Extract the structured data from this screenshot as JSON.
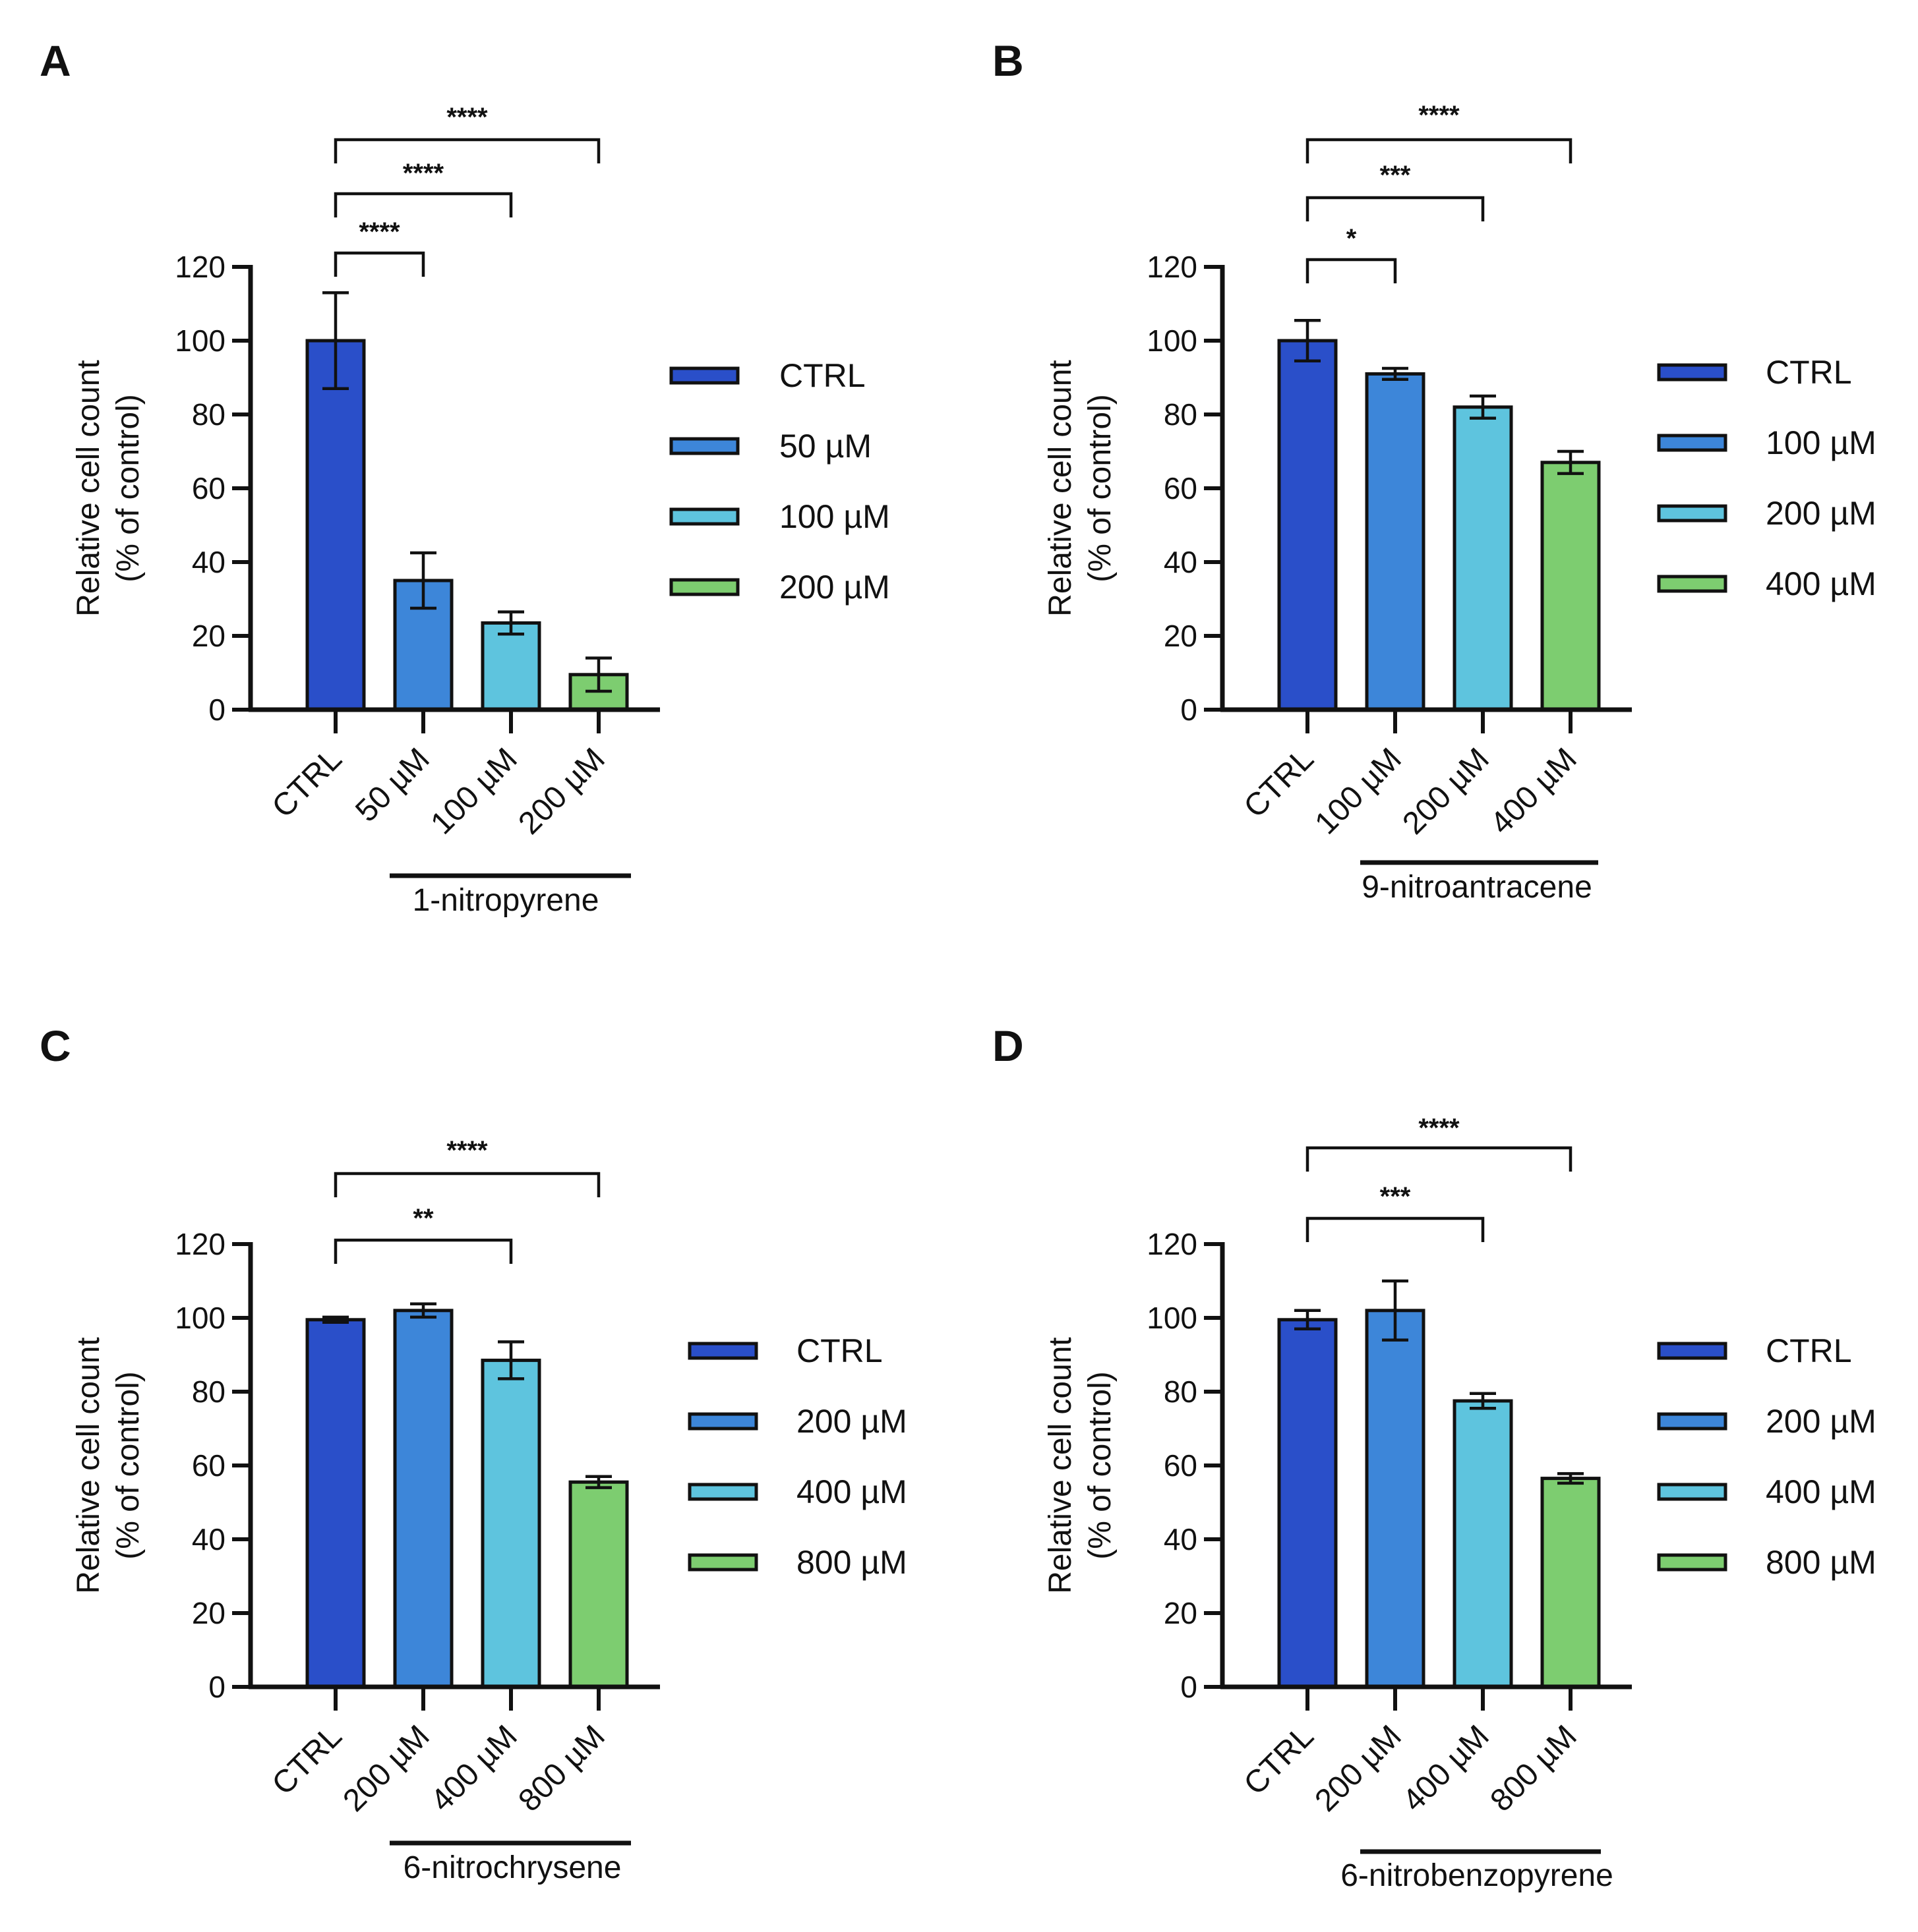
{
  "colors": {
    "ctrl": "#2a4fc9",
    "dose1": "#3d86d9",
    "dose2": "#5ec4de",
    "dose3": "#7dcd70",
    "axis": "#111111",
    "background": "#ffffff"
  },
  "chart_data": [
    {
      "panel_label": "A",
      "type": "bar",
      "categories": [
        "CTRL",
        "50 µM",
        "100 µM",
        "200 µM"
      ],
      "values": [
        100,
        35,
        23.5,
        9.5
      ],
      "error": [
        13,
        7.5,
        3,
        4.5
      ],
      "group_label": "1-nitropyrene",
      "legend": [
        "CTRL",
        "50 µM",
        "100 µM",
        "200 µM"
      ],
      "ylabel_line1": "Relative cell count",
      "ylabel_line2": "(% of control)",
      "ylim": [
        0,
        120
      ],
      "yticks": [
        0,
        20,
        40,
        60,
        80,
        100,
        120
      ],
      "brackets": [
        {
          "from": 0,
          "to": 1,
          "label": "****"
        },
        {
          "from": 0,
          "to": 2,
          "label": "****"
        },
        {
          "from": 0,
          "to": 3,
          "label": "****"
        }
      ]
    },
    {
      "panel_label": "B",
      "type": "bar",
      "categories": [
        "CTRL",
        "100 µM",
        "200 µM",
        "400 µM"
      ],
      "values": [
        100,
        91,
        82,
        67
      ],
      "error": [
        5.5,
        1.5,
        3,
        3
      ],
      "group_label": "9-nitroantracene",
      "legend": [
        "CTRL",
        "100 µM",
        "200 µM",
        "400 µM"
      ],
      "ylabel_line1": "Relative cell count",
      "ylabel_line2": "(% of control)",
      "ylim": [
        0,
        120
      ],
      "yticks": [
        0,
        20,
        40,
        60,
        80,
        100,
        120
      ],
      "brackets": [
        {
          "from": 0,
          "to": 1,
          "label": "*"
        },
        {
          "from": 0,
          "to": 2,
          "label": "***"
        },
        {
          "from": 0,
          "to": 3,
          "label": "****"
        }
      ]
    },
    {
      "panel_label": "C",
      "type": "bar",
      "categories": [
        "CTRL",
        "200 µM",
        "400 µM",
        "800 µM"
      ],
      "values": [
        99.5,
        102,
        88.5,
        55.5
      ],
      "error": [
        0.7,
        1.8,
        5,
        1.5
      ],
      "group_label": "6-nitrochrysene",
      "legend": [
        "CTRL",
        "200 µM",
        "400 µM",
        "800 µM"
      ],
      "ylabel_line1": "Relative cell count",
      "ylabel_line2": "(% of control)",
      "ylim": [
        0,
        120
      ],
      "yticks": [
        0,
        20,
        40,
        60,
        80,
        100,
        120
      ],
      "brackets": [
        {
          "from": 0,
          "to": 2,
          "label": "**"
        },
        {
          "from": 0,
          "to": 3,
          "label": "****"
        }
      ]
    },
    {
      "panel_label": "D",
      "type": "bar",
      "categories": [
        "CTRL",
        "200 µM",
        "400 µM",
        "800 µM"
      ],
      "values": [
        99.5,
        102,
        77.5,
        56.5
      ],
      "error": [
        2.5,
        8,
        2,
        1.3
      ],
      "group_label": "6-nitrobenzopyrene",
      "legend": [
        "CTRL",
        "200 µM",
        "400 µM",
        "800 µM"
      ],
      "ylabel_line1": "Relative cell count",
      "ylabel_line2": "(% of control)",
      "ylim": [
        0,
        120
      ],
      "yticks": [
        0,
        20,
        40,
        60,
        80,
        100,
        120
      ],
      "brackets": [
        {
          "from": 0,
          "to": 2,
          "label": "***"
        },
        {
          "from": 0,
          "to": 3,
          "label": "****"
        }
      ]
    }
  ]
}
